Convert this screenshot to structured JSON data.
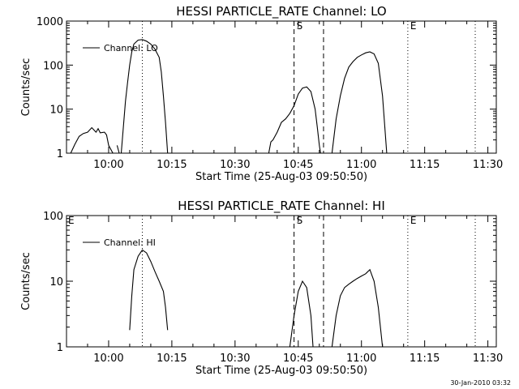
{
  "timestamp": "30-Jan-2010 03:32",
  "chart_data": [
    {
      "type": "line",
      "title": "HESSI PARTICLE_RATE Channel: LO",
      "xlabel": "Start Time (25-Aug-03 09:50:50)",
      "ylabel": "Counts/sec",
      "yscale": "log",
      "ylim": [
        1,
        1000
      ],
      "yticks": [
        {
          "v": 1,
          "label": "1"
        },
        {
          "v": 10,
          "label": "10"
        },
        {
          "v": 100,
          "label": "100"
        },
        {
          "v": 1000,
          "label": "1000"
        }
      ],
      "xlim": [
        "09:50",
        "11:32"
      ],
      "xticks": [
        "10:00",
        "10:15",
        "10:30",
        "10:45",
        "11:00",
        "11:15",
        "11:30"
      ],
      "vlines": [
        {
          "t": "10:08",
          "style": "dotted",
          "label": ""
        },
        {
          "t": "10:44",
          "style": "dashed",
          "label": "S"
        },
        {
          "t": "10:51",
          "style": "dashed",
          "label": ""
        },
        {
          "t": "11:11",
          "style": "dotted",
          "label": "E"
        },
        {
          "t": "11:27",
          "style": "dotted",
          "label": ""
        }
      ],
      "corner_marks": [],
      "legend": {
        "label": "Channel: LO",
        "position": "top-left"
      },
      "series": [
        {
          "name": "Channel: LO",
          "segments": [
            [
              [
                "09:51",
                1
              ],
              [
                "09:52",
                1.6
              ],
              [
                "09:53",
                2.4
              ],
              [
                "09:54",
                2.8
              ],
              [
                "09:55",
                3
              ],
              [
                "09:56",
                3.8
              ],
              [
                "09:57",
                3
              ],
              [
                "09:57.5",
                3.6
              ],
              [
                "09:58",
                2.9
              ],
              [
                "09:59",
                3
              ],
              [
                "09:59.5",
                2.6
              ],
              [
                "10:00",
                1.5
              ],
              [
                "10:01",
                1
              ]
            ],
            [
              [
                "10:02",
                1.5
              ],
              [
                "10:02.5",
                1
              ]
            ],
            [
              [
                "10:03",
                1
              ],
              [
                "10:04",
                15
              ],
              [
                "10:04.5",
                40
              ],
              [
                "10:05",
                100
              ],
              [
                "10:05.5",
                200
              ],
              [
                "10:06",
                300
              ],
              [
                "10:07",
                370
              ],
              [
                "10:08",
                380
              ],
              [
                "10:09",
                350
              ],
              [
                "10:10",
                300
              ],
              [
                "10:11",
                230
              ],
              [
                "10:12",
                150
              ],
              [
                "10:12.5",
                70
              ],
              [
                "10:13",
                20
              ],
              [
                "10:13.5",
                5
              ],
              [
                "10:14",
                1
              ]
            ],
            [
              [
                "10:38",
                1
              ],
              [
                "10:38.5",
                1.8
              ],
              [
                "10:39",
                2
              ],
              [
                "10:40",
                3
              ],
              [
                "10:41",
                5
              ],
              [
                "10:42",
                6
              ],
              [
                "10:43",
                8
              ],
              [
                "10:44",
                12
              ],
              [
                "10:45",
                22
              ],
              [
                "10:46",
                30
              ],
              [
                "10:47",
                32
              ],
              [
                "10:48",
                25
              ],
              [
                "10:49",
                10
              ],
              [
                "10:49.5",
                4
              ],
              [
                "10:50",
                1.5
              ],
              [
                "10:50.3",
                1
              ]
            ],
            [
              [
                "10:53",
                1
              ],
              [
                "10:54",
                6
              ],
              [
                "10:55",
                20
              ],
              [
                "10:56",
                50
              ],
              [
                "10:57",
                90
              ],
              [
                "10:58",
                120
              ],
              [
                "10:59",
                150
              ],
              [
                "11:00",
                170
              ],
              [
                "11:01",
                190
              ],
              [
                "11:02",
                200
              ],
              [
                "11:03",
                180
              ],
              [
                "11:04",
                110
              ],
              [
                "11:05",
                20
              ],
              [
                "11:06",
                1
              ]
            ]
          ]
        }
      ]
    },
    {
      "type": "line",
      "title": "HESSI PARTICLE_RATE Channel: HI",
      "xlabel": "Start Time (25-Aug-03 09:50:50)",
      "ylabel": "Counts/sec",
      "yscale": "log",
      "ylim": [
        1,
        100
      ],
      "yticks": [
        {
          "v": 1,
          "label": "1"
        },
        {
          "v": 10,
          "label": "10"
        },
        {
          "v": 100,
          "label": "100"
        }
      ],
      "xlim": [
        "09:50",
        "11:32"
      ],
      "xticks": [
        "10:00",
        "10:15",
        "10:30",
        "10:45",
        "11:00",
        "11:15",
        "11:30"
      ],
      "vlines": [
        {
          "t": "10:08",
          "style": "dotted",
          "label": ""
        },
        {
          "t": "10:44",
          "style": "dashed",
          "label": "S"
        },
        {
          "t": "10:51",
          "style": "dashed",
          "label": ""
        },
        {
          "t": "11:11",
          "style": "dotted",
          "label": "E"
        },
        {
          "t": "11:27",
          "style": "dotted",
          "label": ""
        }
      ],
      "corner_marks": [
        "E"
      ],
      "legend": {
        "label": "Channel: HI",
        "position": "top-left"
      },
      "series": [
        {
          "name": "Channel: HI",
          "segments": [
            [
              [
                "10:05",
                1.8
              ],
              [
                "10:05.5",
                6
              ],
              [
                "10:06",
                15
              ],
              [
                "10:07",
                24
              ],
              [
                "10:08",
                30
              ],
              [
                "10:09",
                27
              ],
              [
                "10:10",
                20
              ],
              [
                "10:11",
                14
              ],
              [
                "10:12",
                10
              ],
              [
                "10:13",
                7
              ],
              [
                "10:13.5",
                4
              ],
              [
                "10:14",
                1.8
              ]
            ],
            [
              [
                "10:43",
                1
              ],
              [
                "10:44",
                3
              ],
              [
                "10:45",
                7
              ],
              [
                "10:46",
                10
              ],
              [
                "10:47",
                8
              ],
              [
                "10:48",
                3
              ],
              [
                "10:48.5",
                1
              ]
            ],
            [
              [
                "10:53",
                1
              ],
              [
                "10:54",
                3
              ],
              [
                "10:55",
                6
              ],
              [
                "10:56",
                8
              ],
              [
                "10:57",
                9
              ],
              [
                "10:58",
                10
              ],
              [
                "10:59",
                11
              ],
              [
                "11:00",
                12
              ],
              [
                "11:01",
                13
              ],
              [
                "11:02",
                15
              ],
              [
                "11:03",
                10
              ],
              [
                "11:04",
                4
              ],
              [
                "11:05",
                1
              ]
            ]
          ]
        }
      ]
    }
  ]
}
